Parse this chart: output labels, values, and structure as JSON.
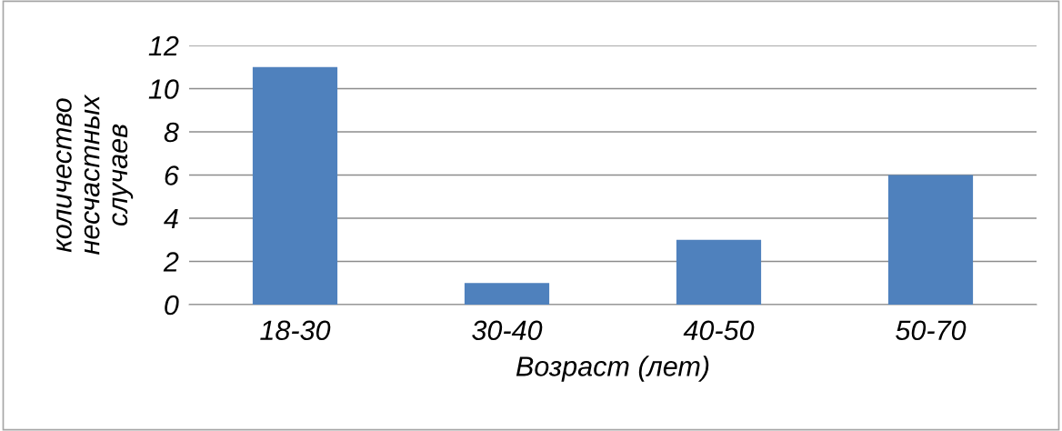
{
  "chart_data": {
    "type": "bar",
    "xlabel": "Возраст (лет)",
    "ylabel": "количество\nнесчастных\nслучаев",
    "categories": [
      "18-30",
      "30-40",
      "40-50",
      "50-70"
    ],
    "values": [
      11,
      1,
      3,
      6
    ],
    "color": "#4f81bd",
    "ylim": [
      0,
      12
    ],
    "yticks": [
      0,
      2,
      4,
      6,
      8,
      10,
      12
    ],
    "grid": "y",
    "legend": false
  }
}
